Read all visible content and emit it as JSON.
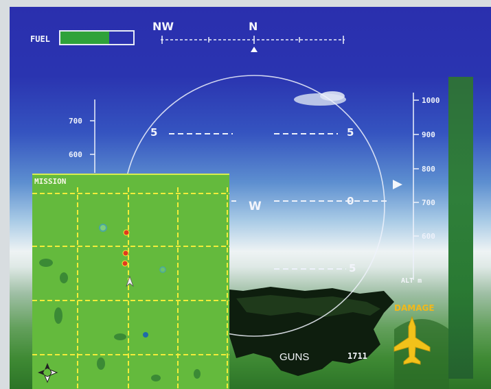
{
  "hud": {
    "fuel_label": "FUEL",
    "fuel_level": 0.67,
    "heading_labels": [
      "NW",
      "N"
    ],
    "pitch_marks": [
      "5",
      "5",
      "W",
      "0",
      "5"
    ],
    "altitude_scale_left": [
      "700",
      "600"
    ],
    "altitude_scale_right": [
      "1000",
      "900",
      "800",
      "700",
      "600"
    ],
    "altitude_unit": "ALT m",
    "weapon_label": "GUNS",
    "ammo_count": "1711",
    "damage_label": "DAMAGE"
  },
  "map": {
    "title": "MISSION",
    "grid_color": "#f2ec3a",
    "background_color": "#64ba3d"
  },
  "colors": {
    "fuel": "#2fa23a",
    "hud": "#f2f4fb",
    "damage": "#f2b81a"
  }
}
